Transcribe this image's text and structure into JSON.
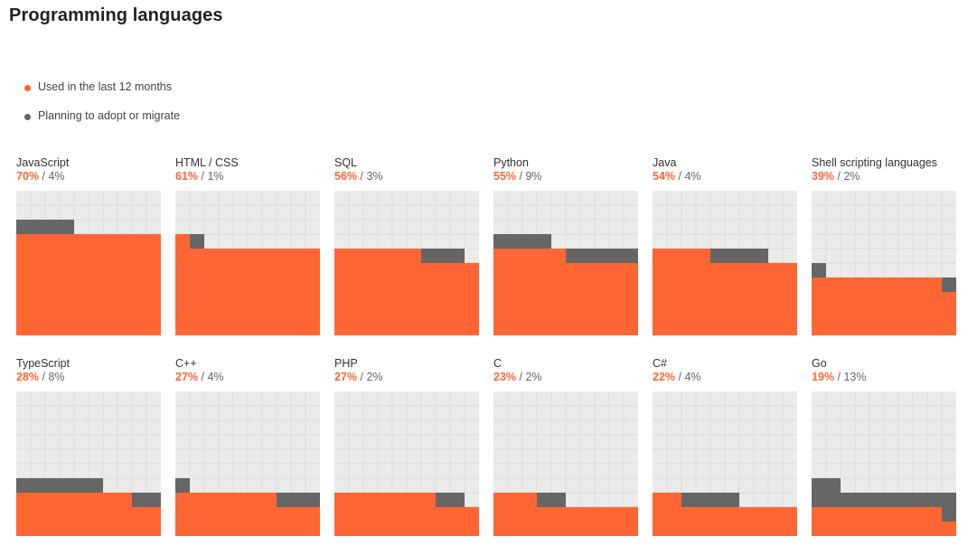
{
  "page": {
    "title": "Programming languages"
  },
  "colors": {
    "used": "#ff6633",
    "planning": "#666666",
    "empty": "#ebebeb",
    "gridline": "#dddddd"
  },
  "legend": [
    {
      "label": "Used in the last 12 months",
      "color": "#ff6633"
    },
    {
      "label": "Planning to adopt or migrate",
      "color": "#666666"
    }
  ],
  "chart_data": {
    "type": "waffle",
    "title": "Programming languages",
    "grid_cells": 100,
    "series": [
      {
        "name": "Used in the last 12 months",
        "color": "#ff6633"
      },
      {
        "name": "Planning to adopt or migrate",
        "color": "#666666"
      }
    ],
    "languages": [
      {
        "name": "JavaScript",
        "used": 70,
        "planning": 4,
        "used_label": "70%",
        "planning_label": "4%"
      },
      {
        "name": "HTML / CSS",
        "used": 61,
        "planning": 1,
        "used_label": "61%",
        "planning_label": "1%"
      },
      {
        "name": "SQL",
        "used": 56,
        "planning": 3,
        "used_label": "56%",
        "planning_label": "3%"
      },
      {
        "name": "Python",
        "used": 55,
        "planning": 9,
        "used_label": "55%",
        "planning_label": "9%"
      },
      {
        "name": "Java",
        "used": 54,
        "planning": 4,
        "used_label": "54%",
        "planning_label": "4%"
      },
      {
        "name": "Shell scripting languages",
        "used": 39,
        "planning": 2,
        "used_label": "39%",
        "planning_label": "2%"
      },
      {
        "name": "TypeScript",
        "used": 28,
        "planning": 8,
        "used_label": "28%",
        "planning_label": "8%"
      },
      {
        "name": "C++",
        "used": 27,
        "planning": 4,
        "used_label": "27%",
        "planning_label": "4%"
      },
      {
        "name": "PHP",
        "used": 27,
        "planning": 2,
        "used_label": "27%",
        "planning_label": "2%"
      },
      {
        "name": "C",
        "used": 23,
        "planning": 2,
        "used_label": "23%",
        "planning_label": "2%"
      },
      {
        "name": "C#",
        "used": 22,
        "planning": 4,
        "used_label": "22%",
        "planning_label": "4%"
      },
      {
        "name": "Go",
        "used": 19,
        "planning": 13,
        "used_label": "19%",
        "planning_label": "13%"
      }
    ]
  }
}
